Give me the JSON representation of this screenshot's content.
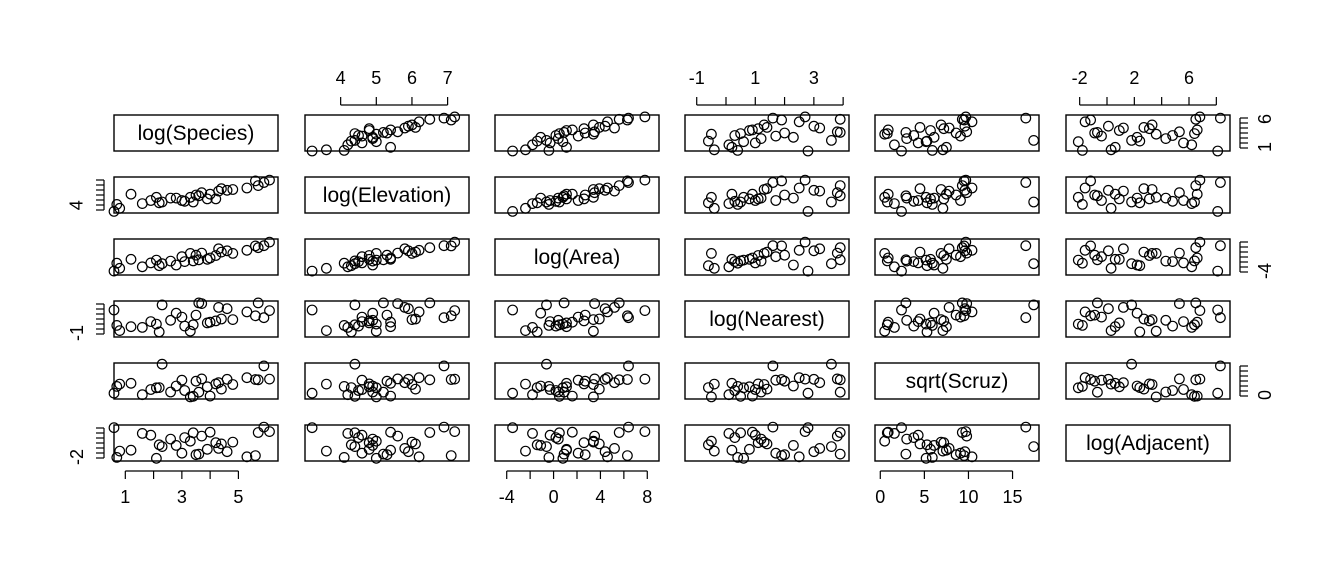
{
  "chart_data": {
    "type": "scatter",
    "variables": [
      {
        "name": "log(Species)",
        "ticks": [
          "1",
          "3",
          "5"
        ],
        "tick_values": [
          1,
          3,
          5
        ],
        "minor_tick_values": [
          2,
          4
        ],
        "range": [
          0.6,
          6.4
        ],
        "tick_side": "bottom"
      },
      {
        "name": "log(Elevation)",
        "ticks": [
          "4",
          "5",
          "6",
          "7"
        ],
        "tick_values": [
          4,
          5,
          6,
          7
        ],
        "minor_tick_values": [],
        "range": [
          3.0,
          7.6
        ],
        "tick_side": "top"
      },
      {
        "name": "log(Area)",
        "ticks": [
          "-4",
          "0",
          "4",
          "8"
        ],
        "tick_values": [
          -4,
          0,
          4,
          8
        ],
        "minor_tick_values": [
          -2,
          2,
          6
        ],
        "range": [
          -5.0,
          9.0
        ],
        "tick_side": "bottom"
      },
      {
        "name": "log(Nearest)",
        "ticks": [
          "-1",
          "1",
          "3"
        ],
        "tick_values": [
          -1,
          1,
          3
        ],
        "minor_tick_values": [
          0,
          2,
          4
        ],
        "range": [
          -1.4,
          4.2
        ],
        "tick_side": "top"
      },
      {
        "name": "sqrt(Scruz)",
        "ticks": [
          "0",
          "5",
          "10",
          "15"
        ],
        "tick_values": [
          0,
          5,
          10,
          15
        ],
        "minor_tick_values": [],
        "range": [
          -0.6,
          18.0
        ],
        "tick_side": "bottom"
      },
      {
        "name": "log(Adjacent)",
        "ticks": [
          "-2",
          "2",
          "6"
        ],
        "tick_values": [
          -2,
          2,
          6
        ],
        "minor_tick_values": [
          0,
          4,
          8
        ],
        "range": [
          -3.0,
          9.0
        ],
        "tick_side": "top"
      }
    ],
    "right_axis_labels": [
      {
        "row": 0,
        "text": "1",
        "value": 1.0
      },
      {
        "row": 0,
        "text": "6",
        "value": 6.0
      },
      {
        "row": 2,
        "text": "-4",
        "value": -4.0
      },
      {
        "row": 4,
        "text": "0",
        "value": 0.0
      }
    ],
    "left_axis_labels": [
      {
        "row": 1,
        "text": "4",
        "value": 4.0
      },
      {
        "row": 3,
        "text": "-1",
        "value": -1.0
      },
      {
        "row": 5,
        "text": "-2",
        "value": -2.0
      }
    ],
    "points": [
      [
        1.2,
        5.4,
        1.1,
        0.2,
        7.5,
        0.6
      ],
      [
        0.6,
        3.2,
        -3.5,
        2.8,
        2.4,
        8.1
      ],
      [
        2.1,
        5.0,
        0.8,
        0.6,
        5.2,
        -2.1
      ],
      [
        2.6,
        4.9,
        0.4,
        1.2,
        3.0,
        4.3
      ],
      [
        3.0,
        4.6,
        2.1,
        1.7,
        9.1,
        -0.4
      ],
      [
        3.3,
        5.0,
        3.4,
        -0.5,
        0.5,
        3.6
      ],
      [
        3.7,
        5.6,
        3.5,
        3.8,
        9.8,
        5.3
      ],
      [
        4.0,
        5.4,
        1.6,
        0.9,
        0.9,
        6.6
      ],
      [
        4.3,
        5.8,
        5.2,
        3.2,
        7.8,
        1.2
      ],
      [
        5.9,
        6.9,
        6.4,
        1.6,
        16.5,
        8.3
      ],
      [
        5.3,
        6.2,
        4.6,
        2.5,
        10.4,
        -1.6
      ],
      [
        4.4,
        6.1,
        3.9,
        1.4,
        4.5,
        2.7
      ],
      [
        3.9,
        4.8,
        1.1,
        0.8,
        5.7,
        0.9
      ],
      [
        1.6,
        4.2,
        -1.8,
        0.1,
        1.6,
        6.2
      ],
      [
        3.5,
        5.3,
        2.7,
        2.0,
        8.6,
        -0.9
      ],
      [
        4.8,
        6.0,
        3.4,
        1.3,
        6.9,
        3.3
      ],
      [
        2.3,
        4.4,
        -0.6,
        3.6,
        17.4,
        1.8
      ],
      [
        5.7,
        6.5,
        5.6,
        3.9,
        9.3,
        6.5
      ],
      [
        0.8,
        3.6,
        -2.4,
        -0.4,
        7.1,
        0.3
      ],
      [
        3.1,
        4.5,
        0.2,
        0.3,
        3.8,
        4.8
      ],
      [
        5.6,
        7.1,
        6.3,
        1.9,
        9.5,
        -1.2
      ],
      [
        2.8,
        4.9,
        -1.1,
        2.3,
        6.1,
        2.2
      ],
      [
        3.4,
        4.4,
        0.5,
        0.5,
        0.8,
        6.4
      ],
      [
        4.6,
        5.9,
        4.4,
        3.0,
        9.6,
        0.1
      ],
      [
        1.9,
        4.6,
        -0.3,
        1.0,
        4.3,
        5.6
      ],
      [
        4.2,
        4.8,
        2.6,
        1.1,
        7.2,
        3.1
      ],
      [
        3.6,
        5.2,
        0.9,
        3.9,
        2.9,
        -0.7
      ],
      [
        2.2,
        4.3,
        -1.4,
        -0.6,
        5.3,
        2.4
      ],
      [
        6.1,
        7.2,
        7.8,
        2.7,
        9.7,
        6.8
      ],
      [
        0.7,
        4.1,
        -0.4,
        0.4,
        5.9,
        -1.8
      ]
    ]
  }
}
